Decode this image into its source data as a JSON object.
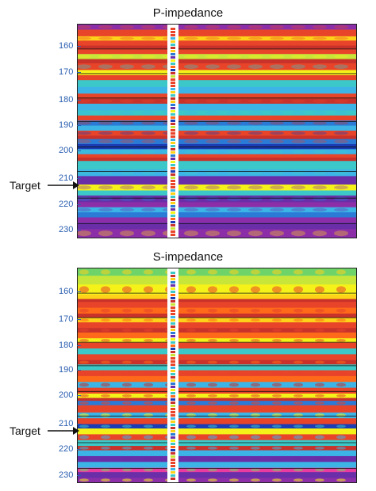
{
  "panels": [
    {
      "title": "P-impedance",
      "target_label": "Target",
      "target_depth": 210,
      "ticks": [
        "160",
        "170",
        "180",
        "190",
        "200",
        "210",
        "220",
        "230"
      ],
      "colors": [
        "#c8322a",
        "#e8442a",
        "#ff6a1a",
        "#ffd21a",
        "#f5f21a",
        "#c8e63a",
        "#6ed46a",
        "#3cc8c8",
        "#3cb4e6",
        "#2a7ad6",
        "#1a3cb4",
        "#6a2ea8",
        "#8c2ea8",
        "#e83ca0"
      ]
    },
    {
      "title": "S-impedance",
      "target_label": "Target",
      "target_depth": 210,
      "ticks": [
        "160",
        "170",
        "180",
        "190",
        "200",
        "210",
        "220",
        "230"
      ],
      "colors": [
        "#c8322a",
        "#e8442a",
        "#ff6a1a",
        "#ffd21a",
        "#f5f21a",
        "#c8e63a",
        "#6ed46a",
        "#3cc8c8",
        "#3cb4e6",
        "#2a7ad6",
        "#1a3cb4",
        "#6a2ea8",
        "#8c2ea8",
        "#e83ca0"
      ]
    }
  ]
}
